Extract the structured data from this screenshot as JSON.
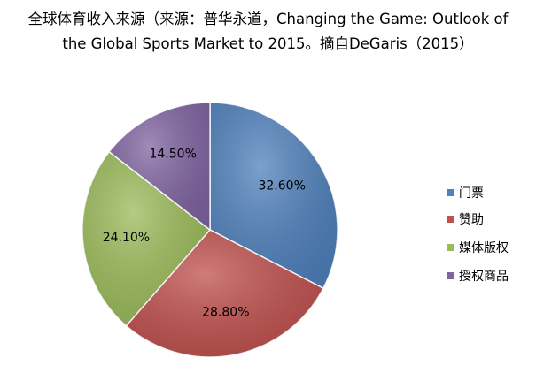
{
  "chart_data": {
    "type": "pie",
    "title": "全球体育收入来源（来源：普华永道，Changing the Game: Outlook of the Global Sports Market to 2015。摘自DeGaris（2015）",
    "categories": [
      "门票",
      "赞助",
      "媒体版权",
      "授权商品"
    ],
    "values": [
      32.6,
      28.8,
      24.1,
      14.5
    ],
    "value_labels": [
      "32.60%",
      "28.80%",
      "24.10%",
      "14.50%"
    ],
    "colors": [
      "#4f81bd",
      "#c0504d",
      "#9bbb59",
      "#8064a2"
    ],
    "legend": "right"
  }
}
